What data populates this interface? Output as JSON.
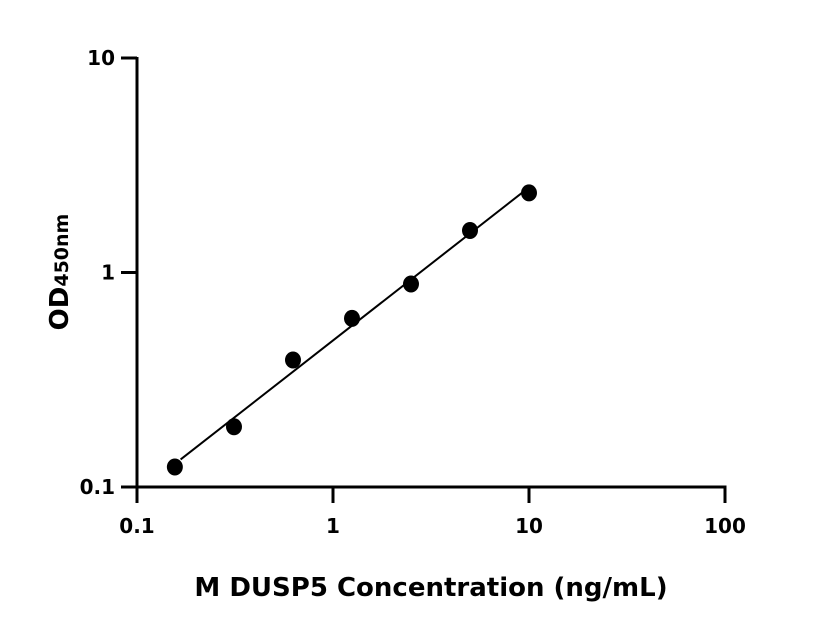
{
  "chart_data": {
    "type": "scatter",
    "title": "",
    "xlabel": "M DUSP5 Concentration (ng/mL)",
    "ylabel_main": "OD",
    "ylabel_sub": "450nm",
    "x_scale": "log",
    "y_scale": "log",
    "xlim": [
      0.1,
      100
    ],
    "ylim": [
      0.1,
      10
    ],
    "x_ticks": [
      0.1,
      1,
      10,
      100
    ],
    "x_tick_labels": [
      "0.1",
      "1",
      "10",
      "100"
    ],
    "y_ticks": [
      0.1,
      1,
      10
    ],
    "y_tick_labels": [
      "0.1",
      "1",
      "10"
    ],
    "grid": false,
    "x": [
      0.156,
      0.3125,
      0.625,
      1.25,
      2.5,
      5,
      10
    ],
    "y": [
      0.124,
      0.191,
      0.391,
      0.611,
      0.884,
      1.57,
      2.35
    ],
    "fit_line": "log-log linear",
    "color": "#000000"
  }
}
